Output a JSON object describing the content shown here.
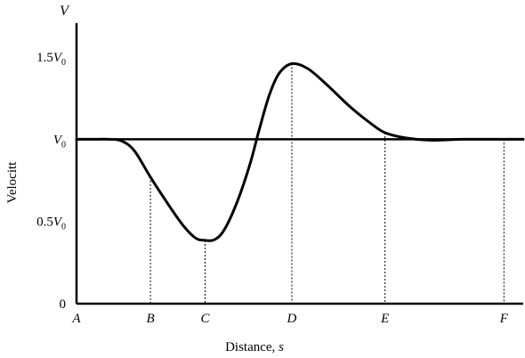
{
  "chart_data": {
    "type": "line",
    "title": "",
    "xlabel": "Distance,",
    "xlabel_var": "s",
    "ylabel": "Velocitt",
    "y_axis_letter": "V",
    "x_ticks": [
      {
        "label": "A",
        "x": 0
      },
      {
        "label": "B",
        "x": 2.3
      },
      {
        "label": "C",
        "x": 4.0
      },
      {
        "label": "D",
        "x": 6.7
      },
      {
        "label": "E",
        "x": 9.6
      },
      {
        "label": "F",
        "x": 13.3
      }
    ],
    "y_ticks": [
      {
        "label": "0",
        "value": 0
      },
      {
        "label": "0.5V0",
        "coef": "0.5",
        "sym": "V",
        "sub": "0",
        "value": 0.5
      },
      {
        "label": "V0",
        "coef": "",
        "sym": "V",
        "sub": "0",
        "value": 1.0
      },
      {
        "label": "1.5V0",
        "coef": "1.5",
        "sym": "V",
        "sub": "0",
        "value": 1.5
      }
    ],
    "reference_line": {
      "value": 1.0
    },
    "xlim": [
      0,
      13.9
    ],
    "ylim": [
      0,
      1.75
    ],
    "series": [
      {
        "points": [
          [
            0,
            1.0
          ],
          [
            0.5,
            1.0
          ],
          [
            1.0,
            1.0
          ],
          [
            1.4,
            0.99
          ],
          [
            1.8,
            0.93
          ],
          [
            2.3,
            0.77
          ],
          [
            2.8,
            0.62
          ],
          [
            3.3,
            0.48
          ],
          [
            3.7,
            0.4
          ],
          [
            4.0,
            0.385
          ],
          [
            4.3,
            0.39
          ],
          [
            4.6,
            0.45
          ],
          [
            5.0,
            0.62
          ],
          [
            5.4,
            0.85
          ],
          [
            5.7,
            1.07
          ],
          [
            6.0,
            1.27
          ],
          [
            6.3,
            1.4
          ],
          [
            6.7,
            1.46
          ],
          [
            7.2,
            1.43
          ],
          [
            7.8,
            1.33
          ],
          [
            8.5,
            1.2
          ],
          [
            9.2,
            1.09
          ],
          [
            9.6,
            1.04
          ],
          [
            10.2,
            1.01
          ],
          [
            11.0,
            0.995
          ],
          [
            12.0,
            1.0
          ],
          [
            13.3,
            1.0
          ],
          [
            13.9,
            1.0
          ]
        ]
      }
    ]
  }
}
